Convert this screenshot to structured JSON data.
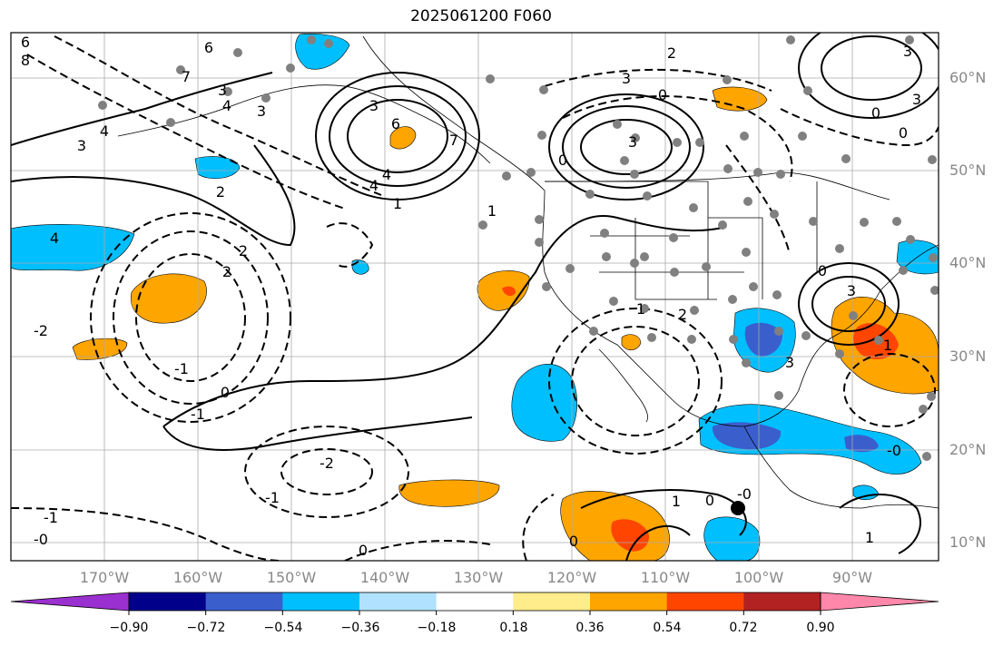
{
  "title": "2025061200 F060",
  "lat_ticks": [
    "60°N",
    "50°N",
    "40°N",
    "30°N",
    "20°N",
    "10°N"
  ],
  "lon_ticks": [
    "170°W",
    "160°W",
    "150°W",
    "140°W",
    "130°W",
    "120°W",
    "110°W",
    "100°W",
    "90°W"
  ],
  "colorbar": {
    "labels": [
      "−0.90",
      "−0.72",
      "−0.54",
      "−0.36",
      "−0.18",
      "0.18",
      "0.36",
      "0.54",
      "0.72",
      "0.90"
    ],
    "colors": [
      "#9b30d0",
      "#00008b",
      "#3a5fcd",
      "#00bfff",
      "#b0e2ff",
      "#ffffff",
      "#ffec8b",
      "#ffa500",
      "#ff4500",
      "#b22222",
      "#ff88aa"
    ]
  },
  "contour_labels": [
    "6",
    "8",
    "6",
    "7",
    "3",
    "4",
    "3",
    "4",
    "3",
    "6",
    "4",
    "1",
    "3",
    "7",
    "4",
    "3",
    "0",
    "0",
    "3",
    "2",
    "3",
    "3",
    "4",
    "2",
    "2",
    "-2",
    "1",
    "0",
    "-1",
    "-2",
    "-1",
    "-1",
    "-1",
    "-0",
    "0",
    "0",
    "-0",
    "1",
    "0",
    "-0",
    "1",
    "2",
    "1",
    "0",
    "3",
    "1",
    "0",
    "2",
    "0",
    "3"
  ],
  "colors": {
    "positive_fill": "#ffa500",
    "strong_positive": "#ff4500",
    "negative_fill": "#00bfff",
    "strong_negative": "#3a5fcd",
    "station_dot": "#808080",
    "grid": "#aaaaaa"
  }
}
